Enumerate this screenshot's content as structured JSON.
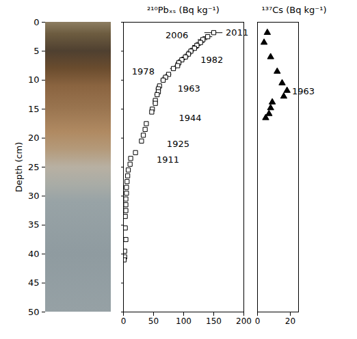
{
  "chart_data": [
    {
      "type": "scatter",
      "title": "²¹⁰Pbₓₛ (Bq kg⁻¹)",
      "ylabel": "Depth (cm)",
      "x": [
        150,
        140,
        132,
        128,
        122,
        118,
        112,
        108,
        103,
        97,
        92,
        90,
        83,
        75,
        70,
        66,
        60,
        58,
        58,
        56,
        53,
        53,
        48,
        47,
        38,
        36,
        33,
        30,
        20,
        12,
        11,
        8,
        7,
        6,
        5,
        5,
        4,
        4,
        4,
        3,
        3,
        4,
        2,
        2,
        1
      ],
      "y": [
        1.8,
        2.5,
        3,
        3.5,
        4,
        4.5,
        5,
        5.5,
        6,
        6.5,
        7,
        7.5,
        8,
        9,
        9.5,
        10,
        11,
        11.5,
        12,
        12.5,
        13.5,
        14,
        15,
        15.5,
        17.5,
        18.5,
        19.5,
        20.5,
        22.5,
        23.5,
        24.5,
        25.5,
        26.5,
        27.5,
        28.5,
        29.5,
        30.5,
        31.5,
        32.5,
        33.5,
        35.5,
        37.5,
        39.5,
        40.5,
        41
      ],
      "errors": [
        15,
        8,
        8,
        7,
        7,
        7,
        6,
        6,
        6,
        6,
        5,
        5,
        5,
        5,
        5,
        4,
        4,
        4,
        4,
        4,
        4,
        4,
        4,
        3,
        3,
        3,
        3,
        3,
        3,
        2,
        2,
        2,
        2,
        2,
        2,
        2,
        2,
        2,
        2,
        2,
        2,
        2,
        2,
        2,
        2
      ],
      "marker": "open square",
      "color": "#000000",
      "xlim": [
        0,
        200
      ],
      "xticks": [
        0,
        50,
        100,
        150,
        200
      ],
      "ylim": [
        0,
        50
      ],
      "yticks": [
        0,
        5,
        10,
        15,
        20,
        25,
        30,
        35,
        40,
        45,
        50
      ],
      "annotations": [
        {
          "text": "2011",
          "x": 170,
          "y": 1.8
        },
        {
          "text": "2006",
          "x": 70,
          "y": 2.3
        },
        {
          "text": "1982",
          "x": 128,
          "y": 6.5
        },
        {
          "text": "1978",
          "x": 14,
          "y": 8.5
        },
        {
          "text": "1963",
          "x": 90,
          "y": 11.5
        },
        {
          "text": "1944",
          "x": 92,
          "y": 16.5
        },
        {
          "text": "1925",
          "x": 72,
          "y": 21
        },
        {
          "text": "1911",
          "x": 55,
          "y": 23.8
        }
      ]
    },
    {
      "type": "scatter",
      "title": "¹³⁷Cs (Bq kg⁻¹)",
      "x": [
        6,
        4,
        8,
        12,
        15,
        18,
        16,
        9,
        8,
        7,
        5
      ],
      "y": [
        1.8,
        3.5,
        6,
        8.5,
        10.5,
        11.8,
        12.8,
        13.8,
        14.8,
        15.8,
        16.5
      ],
      "marker": "triangle",
      "color": "#000000",
      "xlim": [
        0,
        25
      ],
      "xticks": [
        0,
        20
      ],
      "ylim": [
        0,
        50
      ],
      "annotations": [
        {
          "text": "1963",
          "x": 21,
          "y": 12
        }
      ]
    }
  ]
}
